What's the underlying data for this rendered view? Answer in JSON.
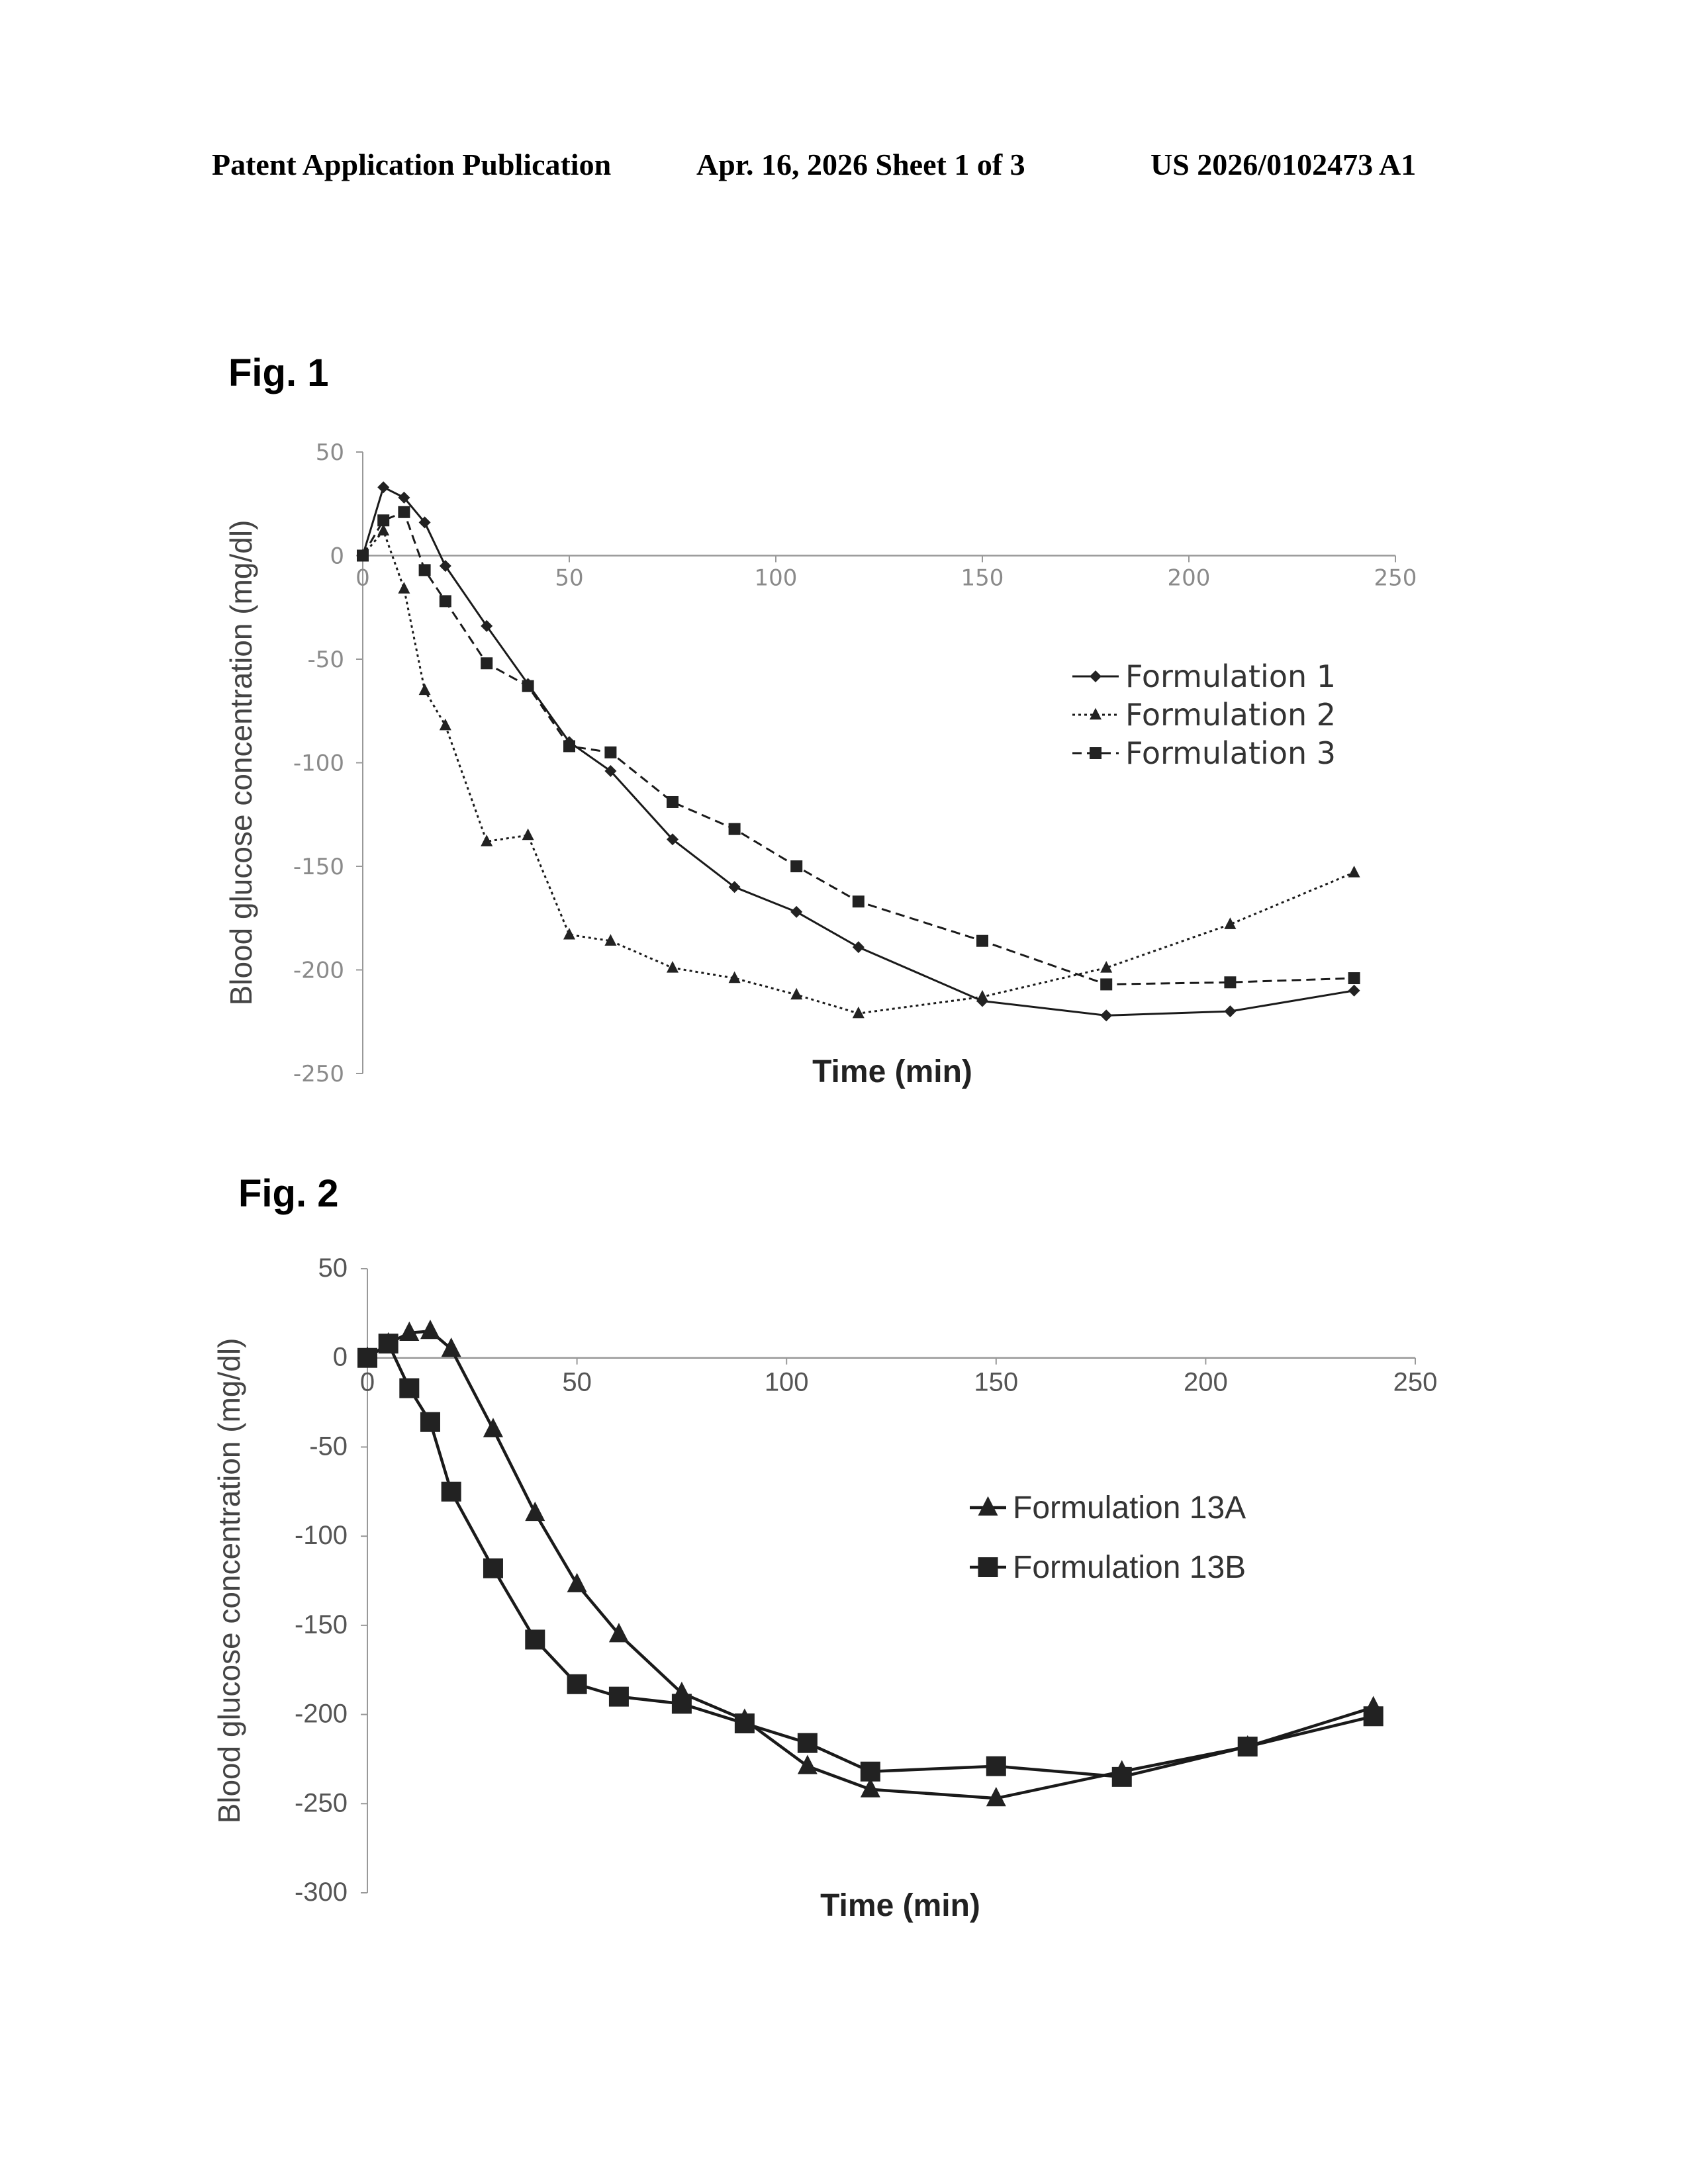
{
  "header": {
    "left": "Patent Application Publication",
    "center": "Apr. 16, 2026  Sheet 1 of 3",
    "right": "US 2026/0102473 A1"
  },
  "figures": [
    {
      "label": "Fig. 1"
    },
    {
      "label": "Fig. 2"
    }
  ],
  "chart_data": [
    {
      "type": "line",
      "title": "",
      "xlabel": "Time (min)",
      "ylabel": "Blood glucose concentration (mg/dl)",
      "xlim": [
        0,
        250
      ],
      "ylim": [
        -250,
        50
      ],
      "xticks": [
        "0",
        "50",
        "100",
        "150",
        "200",
        "250"
      ],
      "yticks": [
        "50",
        "0",
        "-50",
        "-100",
        "-150",
        "-200",
        "-250"
      ],
      "legend_position": "right",
      "series": [
        {
          "name": "Formulation 1",
          "marker": "diamond",
          "line": "solid",
          "x": [
            0,
            5,
            10,
            15,
            20,
            30,
            40,
            50,
            60,
            75,
            90,
            105,
            120,
            150,
            180,
            210,
            240
          ],
          "y": [
            0,
            33,
            28,
            16,
            -5,
            -34,
            -62,
            -90,
            -104,
            -137,
            -160,
            -172,
            -189,
            -215,
            -222,
            -220,
            -210
          ]
        },
        {
          "name": "Formulation 2",
          "marker": "triangle",
          "line": "dotted",
          "x": [
            0,
            5,
            10,
            15,
            20,
            30,
            40,
            50,
            60,
            75,
            90,
            105,
            120,
            150,
            180,
            210,
            240
          ],
          "y": [
            0,
            12,
            -16,
            -65,
            -82,
            -138,
            -135,
            -183,
            -186,
            -199,
            -204,
            -212,
            -221,
            -213,
            -199,
            -178,
            -153
          ]
        },
        {
          "name": "Formulation 3",
          "marker": "square",
          "line": "dashed",
          "x": [
            0,
            5,
            10,
            15,
            20,
            30,
            40,
            50,
            60,
            75,
            90,
            105,
            120,
            150,
            180,
            210,
            240
          ],
          "y": [
            0,
            17,
            21,
            -7,
            -22,
            -52,
            -63,
            -92,
            -95,
            -119,
            -132,
            -150,
            -167,
            -186,
            -207,
            -206,
            -204
          ]
        }
      ]
    },
    {
      "type": "line",
      "title": "",
      "xlabel": "Time (min)",
      "ylabel": "Blood glucose concentration (mg/dl)",
      "xlim": [
        0,
        250
      ],
      "ylim": [
        -300,
        50
      ],
      "xticks": [
        "0",
        "50",
        "100",
        "150",
        "200",
        "250"
      ],
      "yticks": [
        "50",
        "0",
        "-50",
        "-100",
        "-150",
        "-200",
        "-250",
        "-300"
      ],
      "legend_position": "right",
      "series": [
        {
          "name": "Formulation 13A",
          "marker": "triangle",
          "line": "solid",
          "x": [
            0,
            5,
            10,
            15,
            20,
            30,
            40,
            50,
            60,
            75,
            90,
            105,
            120,
            150,
            180,
            210,
            240
          ],
          "y": [
            0,
            8,
            14,
            15,
            5,
            -40,
            -87,
            -127,
            -155,
            -188,
            -203,
            -229,
            -242,
            -247,
            -232,
            -218,
            -196
          ]
        },
        {
          "name": "Formulation 13B",
          "marker": "square",
          "line": "solid",
          "x": [
            0,
            5,
            10,
            15,
            20,
            30,
            40,
            50,
            60,
            75,
            90,
            105,
            120,
            150,
            180,
            210,
            240
          ],
          "y": [
            0,
            8,
            -17,
            -36,
            -75,
            -118,
            -158,
            -183,
            -190,
            -194,
            -205,
            -216,
            -232,
            -229,
            -235,
            -218,
            -201
          ]
        }
      ]
    }
  ]
}
